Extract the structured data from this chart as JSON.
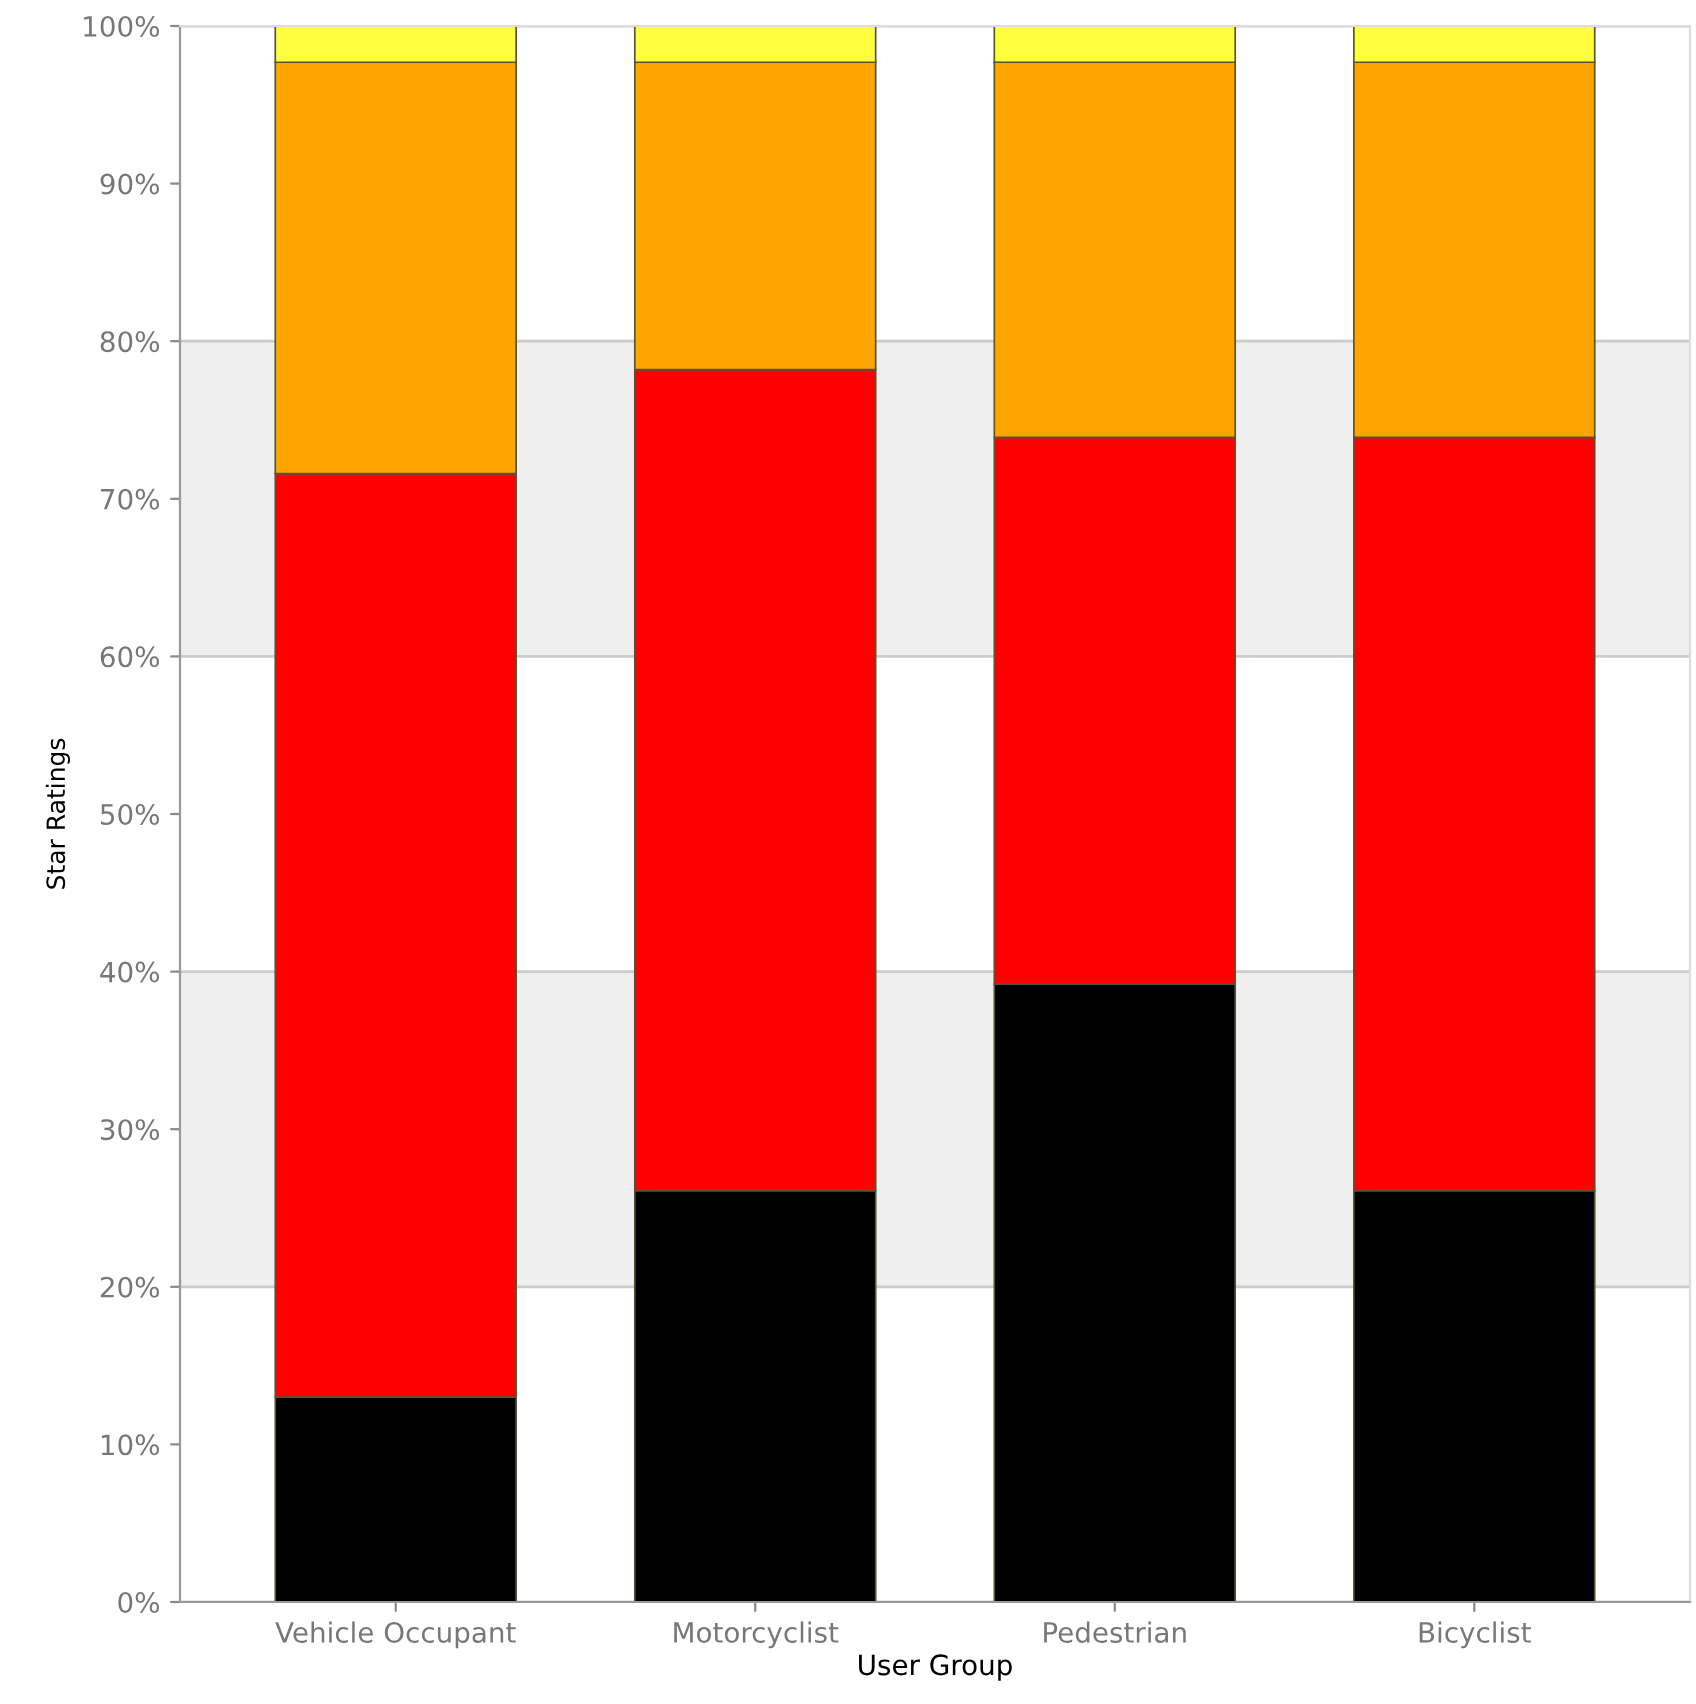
{
  "chart_data": {
    "type": "bar",
    "stacked": true,
    "xlabel": "User Group",
    "ylabel": "Star Ratings",
    "categories": [
      "Vehicle Occupant",
      "Motorcyclist",
      "Pedestrian",
      "Bicyclist"
    ],
    "series": [
      {
        "color": "#000000",
        "values": [
          13.0,
          26.1,
          39.2,
          26.1
        ]
      },
      {
        "color": "#ff0000",
        "values": [
          58.6,
          52.1,
          34.7,
          47.8
        ]
      },
      {
        "color": "#ffa500",
        "values": [
          26.1,
          19.5,
          23.8,
          23.8
        ]
      },
      {
        "color": "#ffff40",
        "values": [
          2.3,
          2.3,
          2.3,
          2.3
        ]
      }
    ],
    "ylim": [
      0,
      100
    ],
    "yticks": [
      {
        "value": 0,
        "label": "0%"
      },
      {
        "value": 10,
        "label": "10%"
      },
      {
        "value": 20,
        "label": "20%"
      },
      {
        "value": 30,
        "label": "30%"
      },
      {
        "value": 40,
        "label": "40%"
      },
      {
        "value": 50,
        "label": "50%"
      },
      {
        "value": 60,
        "label": "60%"
      },
      {
        "value": 70,
        "label": "70%"
      },
      {
        "value": 80,
        "label": "80%"
      },
      {
        "value": 90,
        "label": "90%"
      },
      {
        "value": 100,
        "label": "100%"
      }
    ],
    "bands": [
      {
        "axis": "y",
        "from": 20,
        "to": 40,
        "color": "#efefef"
      },
      {
        "axis": "y",
        "from": 60,
        "to": 80,
        "color": "#efefef"
      }
    ],
    "grid": "y"
  }
}
